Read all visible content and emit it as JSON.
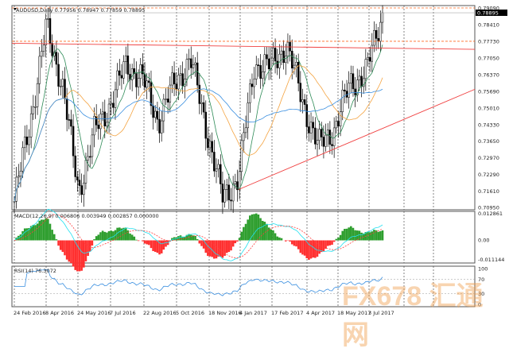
{
  "header": {
    "symbol": "AUDUSD,Daily",
    "ohlc": "0.77956 0.78947 0.77859 0.78895"
  },
  "watermark": "FX678 汇通网",
  "colors": {
    "up": "#ffffff",
    "down": "#000000",
    "sma_fast": "#2e8b57",
    "sma_mid": "#f4a340",
    "sma_slow": "#3a8fe0",
    "trendline": "#f04040",
    "level": "#ff6a20",
    "macd_pos": "#2e9e2e",
    "macd_neg": "#ff3030",
    "macd_line": "#20e0f0",
    "signal": "#ff4040",
    "rsi": "#3a8fe0"
  },
  "chart_data": [
    {
      "type": "candlestick",
      "title": "AUDUSD,Daily",
      "ylim": [
        0.7095,
        0.7909
      ],
      "y_ticks": [
        "0.79090",
        "0.78410",
        "0.77730",
        "0.77050",
        "0.76370",
        "0.75690",
        "0.75010",
        "0.74330",
        "0.73650",
        "0.72970",
        "0.72290",
        "0.71610",
        "0.70950"
      ],
      "current_price": "0.78895",
      "x_ticks": [
        "24 Feb 2016",
        "8 Apr 2016",
        "24 May 2016",
        "7 Jul 2016",
        "22 Aug 2016",
        "5 Oct 2016",
        "18 Nov 2016",
        "4 Jan 2017",
        "17 Feb 2017",
        "4 Apr 2017",
        "18 May 2017",
        "3 Jul 2017"
      ],
      "approx_close_path": [
        {
          "date": "24 Feb 2016",
          "price": 0.712
        },
        {
          "date": "Mar 2016",
          "price": 0.745
        },
        {
          "date": "8 Apr 2016",
          "price": 0.783
        },
        {
          "date": "Apr 2016",
          "price": 0.76
        },
        {
          "date": "24 May 2016",
          "price": 0.716
        },
        {
          "date": "Jun 2016",
          "price": 0.74
        },
        {
          "date": "7 Jul 2016",
          "price": 0.752
        },
        {
          "date": "Aug 2016",
          "price": 0.768
        },
        {
          "date": "22 Aug 2016",
          "price": 0.762
        },
        {
          "date": "Sep 2016",
          "price": 0.745
        },
        {
          "date": "5 Oct 2016",
          "price": 0.76
        },
        {
          "date": "Nov 2016",
          "price": 0.77
        },
        {
          "date": "18 Nov 2016",
          "price": 0.742
        },
        {
          "date": "Dec 2016",
          "price": 0.713
        },
        {
          "date": "4 Jan 2017",
          "price": 0.722
        },
        {
          "date": "Feb 2017",
          "price": 0.768
        },
        {
          "date": "17 Feb 2017",
          "price": 0.767
        },
        {
          "date": "Mar 2017",
          "price": 0.776
        },
        {
          "date": "4 Apr 2017",
          "price": 0.753
        },
        {
          "date": "May 2017",
          "price": 0.734
        },
        {
          "date": "18 May 2017",
          "price": 0.742
        },
        {
          "date": "Jun 2017",
          "price": 0.76
        },
        {
          "date": "3 Jul 2017",
          "price": 0.765
        },
        {
          "date": "Jul 2017",
          "price": 0.789
        }
      ],
      "trendlines": [
        {
          "from": 0.7765,
          "to": 0.774
        },
        {
          "from": 0.7168,
          "to": 0.7577
        }
      ],
      "levels": [
        0.7909,
        0.7773
      ]
    },
    {
      "type": "macd",
      "label": "MACD(12,26,9) 0.006806 0.003949 0.002857 0.000000",
      "y_ticks": [
        "0.012861",
        "0.00",
        "-0.011144"
      ]
    },
    {
      "type": "line",
      "label": "RSI(14) 76.3072",
      "y_ticks": [
        "100",
        "70",
        "30",
        "0"
      ],
      "ylim": [
        0,
        100
      ]
    }
  ]
}
